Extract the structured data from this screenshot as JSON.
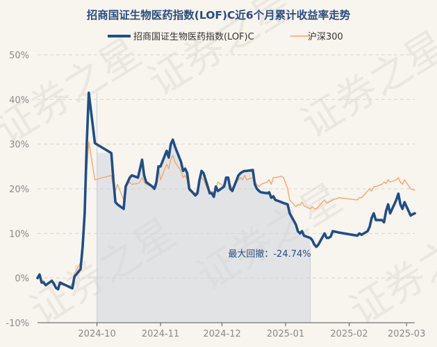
{
  "chart_data": {
    "type": "line",
    "title": "招商国证生物医药指数(LOF)C近6个月累计收益率走势",
    "watermark": "证券之星",
    "y_unit": "%",
    "ylim": [
      -10,
      50
    ],
    "y_ticks": [
      -10,
      0,
      10,
      20,
      30,
      40,
      50
    ],
    "y_tick_labels": [
      "-10%",
      "0%",
      "10%",
      "20%",
      "30%",
      "40%",
      "50%"
    ],
    "xlim": [
      "2024-09-02",
      "2025-03-05"
    ],
    "x_ticks": [
      "2024-10-01",
      "2024-11-01",
      "2024-12-01",
      "2025-01-01",
      "2025-02-01",
      "2025-03-01"
    ],
    "x_tick_labels": [
      "2024-10",
      "2024-11",
      "2024-12",
      "2025-01",
      "2025-02",
      "2025-03"
    ],
    "grid": "horizontal dashed",
    "legend_position": "top",
    "x": [
      "2024-09-02",
      "2024-09-03",
      "2024-09-04",
      "2024-09-05",
      "2024-09-06",
      "2024-09-09",
      "2024-09-10",
      "2024-09-11",
      "2024-09-12",
      "2024-09-13",
      "2024-09-18",
      "2024-09-19",
      "2024-09-20",
      "2024-09-23",
      "2024-09-24",
      "2024-09-25",
      "2024-09-26",
      "2024-09-27",
      "2024-09-30",
      "2024-10-08",
      "2024-10-09",
      "2024-10-10",
      "2024-10-11",
      "2024-10-14",
      "2024-10-15",
      "2024-10-16",
      "2024-10-17",
      "2024-10-18",
      "2024-10-21",
      "2024-10-22",
      "2024-10-23",
      "2024-10-24",
      "2024-10-25",
      "2024-10-28",
      "2024-10-29",
      "2024-10-30",
      "2024-10-31",
      "2024-11-01",
      "2024-11-04",
      "2024-11-05",
      "2024-11-06",
      "2024-11-07",
      "2024-11-08",
      "2024-11-11",
      "2024-11-12",
      "2024-11-13",
      "2024-11-14",
      "2024-11-15",
      "2024-11-18",
      "2024-11-19",
      "2024-11-20",
      "2024-11-21",
      "2024-11-22",
      "2024-11-25",
      "2024-11-26",
      "2024-11-27",
      "2024-11-28",
      "2024-11-29",
      "2024-12-02",
      "2024-12-03",
      "2024-12-04",
      "2024-12-05",
      "2024-12-06",
      "2024-12-09",
      "2024-12-10",
      "2024-12-11",
      "2024-12-12",
      "2024-12-13",
      "2024-12-16",
      "2024-12-17",
      "2024-12-18",
      "2024-12-19",
      "2024-12-20",
      "2024-12-23",
      "2024-12-24",
      "2024-12-25",
      "2024-12-26",
      "2024-12-27",
      "2024-12-30",
      "2024-12-31",
      "2025-01-02",
      "2025-01-03",
      "2025-01-06",
      "2025-01-07",
      "2025-01-08",
      "2025-01-09",
      "2025-01-10",
      "2025-01-13",
      "2025-01-14",
      "2025-01-15",
      "2025-01-16",
      "2025-01-17",
      "2025-01-20",
      "2025-01-21",
      "2025-01-22",
      "2025-01-23",
      "2025-01-24",
      "2025-01-27",
      "2025-02-05",
      "2025-02-06",
      "2025-02-07",
      "2025-02-10",
      "2025-02-11",
      "2025-02-12",
      "2025-02-13",
      "2025-02-14",
      "2025-02-17",
      "2025-02-18",
      "2025-02-19",
      "2025-02-20",
      "2025-02-21",
      "2025-02-24",
      "2025-02-25",
      "2025-02-26",
      "2025-02-27",
      "2025-02-28",
      "2025-03-03",
      "2025-03-04",
      "2025-03-05"
    ],
    "series": [
      {
        "name": "招商国证生物医药指数(LOF)C",
        "color": "#1f4e87",
        "values": [
          0.0,
          0.8,
          -1.0,
          -1.0,
          -1.6,
          -0.6,
          -1.3,
          -2.2,
          -2.5,
          -1.0,
          -2.1,
          -2.3,
          0.3,
          2.0,
          7.0,
          14.5,
          30.0,
          41.5,
          30.2,
          28.0,
          22.0,
          17.0,
          16.5,
          15.5,
          20.5,
          21.5,
          22.5,
          23.0,
          22.5,
          24.5,
          26.5,
          23.0,
          21.5,
          20.5,
          20.0,
          21.5,
          25.0,
          25.0,
          28.5,
          27.0,
          30.0,
          31.0,
          29.5,
          26.0,
          24.0,
          24.5,
          23.5,
          20.0,
          18.5,
          19.0,
          22.0,
          24.0,
          23.5,
          19.0,
          19.0,
          18.2,
          20.5,
          19.5,
          20.5,
          22.5,
          22.5,
          20.0,
          19.5,
          23.0,
          23.5,
          23.8,
          24.0,
          24.0,
          24.2,
          21.0,
          20.0,
          19.5,
          19.2,
          19.0,
          19.2,
          18.0,
          18.3,
          17.5,
          17.0,
          16.8,
          16.5,
          14.5,
          12.0,
          10.5,
          10.0,
          10.5,
          9.5,
          9.0,
          8.5,
          7.5,
          7.0,
          7.5,
          10.0,
          9.0,
          9.0,
          9.3,
          10.5,
          10.2,
          9.5,
          10.0,
          9.7,
          10.5,
          11.5,
          13.5,
          14.5,
          13.0,
          13.0,
          12.5,
          15.0,
          16.5,
          14.5,
          17.5,
          18.9,
          16.5,
          15.5,
          17.0,
          14.0,
          14.3,
          14.5
        ]
      },
      {
        "name": "沪深300",
        "color": "#f4a76b",
        "values": [
          0.0,
          0.3,
          -0.8,
          -0.5,
          -1.4,
          -0.9,
          -1.2,
          -2.0,
          -2.3,
          -1.5,
          -1.8,
          -1.2,
          1.0,
          3.5,
          7.5,
          13.5,
          24.0,
          30.5,
          22.0,
          23.0,
          20.5,
          19.5,
          21.0,
          17.5,
          20.5,
          21.0,
          21.5,
          21.0,
          21.2,
          21.5,
          22.5,
          21.5,
          21.0,
          20.5,
          20.0,
          20.5,
          24.5,
          22.0,
          25.5,
          24.5,
          26.5,
          27.5,
          26.0,
          24.0,
          22.5,
          23.0,
          22.0,
          19.5,
          19.0,
          19.5,
          21.5,
          22.5,
          22.0,
          18.8,
          19.5,
          19.0,
          20.0,
          21.5,
          20.5,
          22.0,
          22.5,
          21.0,
          20.0,
          22.0,
          22.5,
          22.0,
          23.0,
          22.0,
          22.5,
          21.5,
          21.0,
          20.5,
          21.0,
          21.5,
          22.0,
          21.0,
          22.5,
          22.5,
          22.8,
          22.5,
          20.0,
          17.5,
          16.0,
          16.5,
          16.3,
          17.0,
          16.2,
          15.5,
          16.0,
          15.5,
          15.5,
          16.0,
          17.5,
          16.8,
          17.0,
          17.2,
          17.5,
          18.0,
          17.5,
          18.0,
          18.0,
          19.5,
          20.0,
          19.5,
          20.5,
          20.5,
          21.0,
          21.5,
          21.2,
          22.0,
          21.5,
          22.0,
          22.5,
          21.5,
          21.0,
          22.0,
          20.0,
          19.8,
          19.7
        ]
      }
    ],
    "annotation": {
      "label": "最大回撤：-24.74%",
      "start_date": "2024-10-01",
      "end_date": "2025-01-13",
      "series_index": 0
    }
  }
}
